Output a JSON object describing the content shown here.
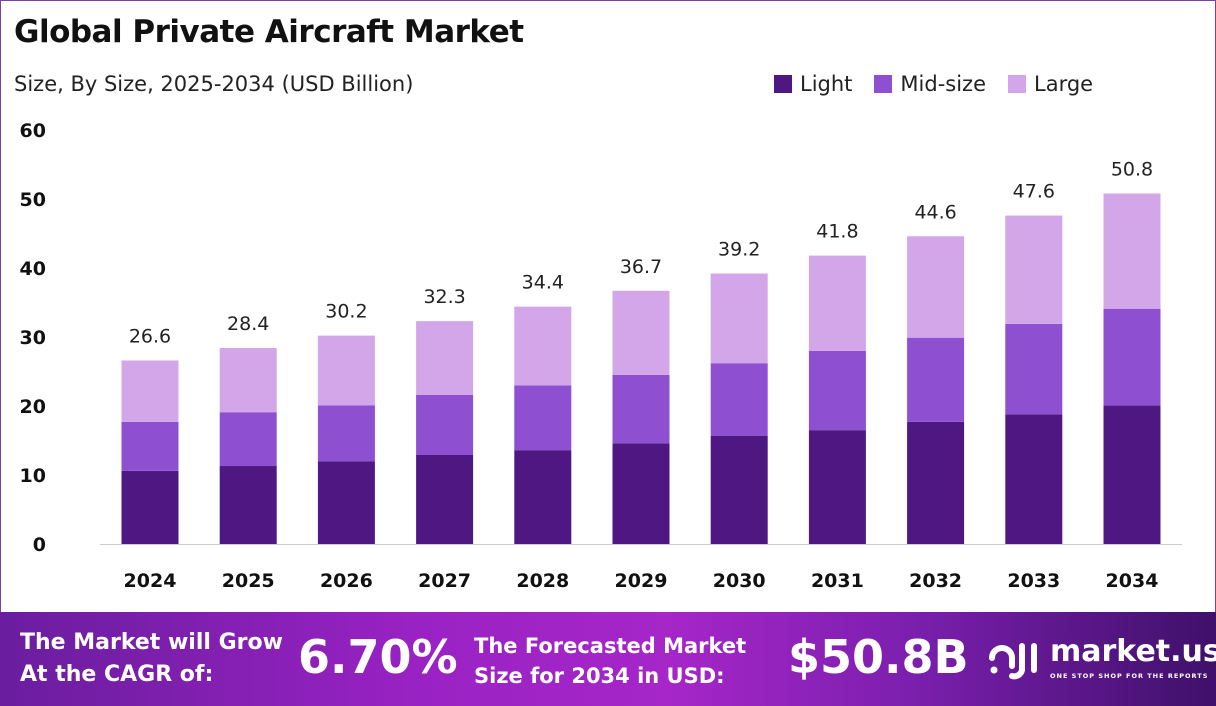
{
  "title": "Global Private Aircraft Market",
  "subtitle": "Size, By Size, 2025-2034 (USD Billion)",
  "chart_data": {
    "type": "stacked-bar",
    "categories": [
      "2024",
      "2025",
      "2026",
      "2027",
      "2028",
      "2029",
      "2030",
      "2031",
      "2032",
      "2033",
      "2034"
    ],
    "series": [
      {
        "name": "Light",
        "color": "#4e1782",
        "values": [
          10.6,
          11.3,
          12.0,
          12.9,
          13.6,
          14.6,
          15.7,
          16.5,
          17.7,
          18.8,
          20.1
        ]
      },
      {
        "name": "Mid-size",
        "color": "#8e4fd0",
        "values": [
          7.1,
          7.8,
          8.1,
          8.7,
          9.4,
          9.9,
          10.5,
          11.5,
          12.2,
          13.1,
          14.0
        ]
      },
      {
        "name": "Large",
        "color": "#d3a6ea",
        "values": [
          8.9,
          9.3,
          10.1,
          10.7,
          11.4,
          12.2,
          13.0,
          13.8,
          14.7,
          15.7,
          16.7
        ]
      }
    ],
    "totals": [
      "26.6",
      "28.4",
      "30.2",
      "32.3",
      "34.4",
      "36.7",
      "39.2",
      "41.8",
      "44.6",
      "47.6",
      "50.8"
    ],
    "yticks": [
      "0",
      "10",
      "20",
      "30",
      "40",
      "50",
      "60"
    ],
    "ylim": [
      0,
      60
    ],
    "grid": false,
    "legend": "top-right"
  },
  "footer": {
    "cagr_label_1": "The Market will Grow",
    "cagr_label_2": "At the CAGR of:",
    "cagr_value": "6.70%",
    "forecast_label_1": "The Forecasted Market",
    "forecast_label_2": "Size for 2034 in USD:",
    "forecast_value": "$50.8B",
    "brand": "market.us",
    "tagline": "ONE STOP SHOP FOR THE REPORTS"
  }
}
